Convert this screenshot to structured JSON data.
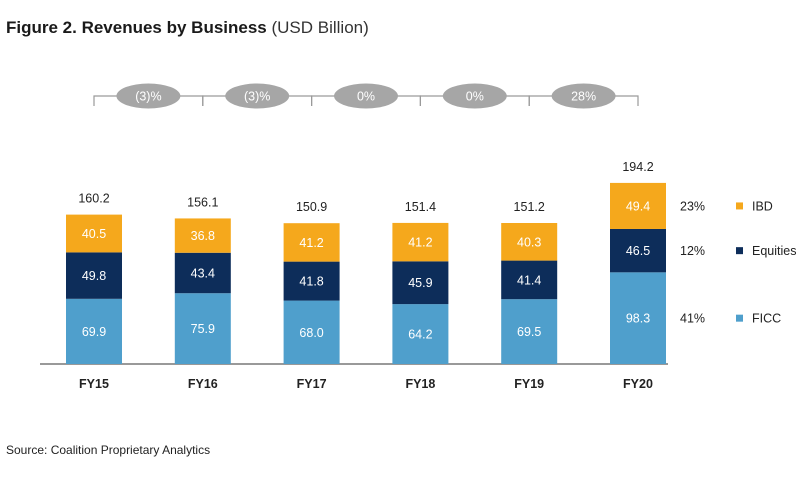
{
  "title": {
    "bold": "Figure 2. Revenues by Business",
    "unit": " (USD Billion)"
  },
  "source": "Source: Coalition Proprietary Analytics",
  "chart_data": {
    "type": "bar",
    "stacked": true,
    "categories": [
      "FY15",
      "FY16",
      "FY17",
      "FY18",
      "FY19",
      "FY20"
    ],
    "series": [
      {
        "name": "FICC",
        "values": [
          69.9,
          75.9,
          68.0,
          64.2,
          69.5,
          98.3
        ],
        "color": "#4f9fcc",
        "share": "41%"
      },
      {
        "name": "Equities",
        "values": [
          49.8,
          43.4,
          41.8,
          45.9,
          41.4,
          46.5
        ],
        "color": "#0d2d5a",
        "share": "12%"
      },
      {
        "name": "IBD",
        "values": [
          40.5,
          36.8,
          41.2,
          41.2,
          40.3,
          49.4
        ],
        "color": "#f5a81c",
        "share": "23%"
      }
    ],
    "totals": [
      "160.2",
      "156.1",
      "150.9",
      "151.4",
      "151.2",
      "194.2"
    ],
    "growth": [
      "(3)%",
      "(3)%",
      "0%",
      "0%",
      "28%"
    ],
    "ylim": [
      0,
      220
    ],
    "legend_position": "right",
    "grid": false
  }
}
